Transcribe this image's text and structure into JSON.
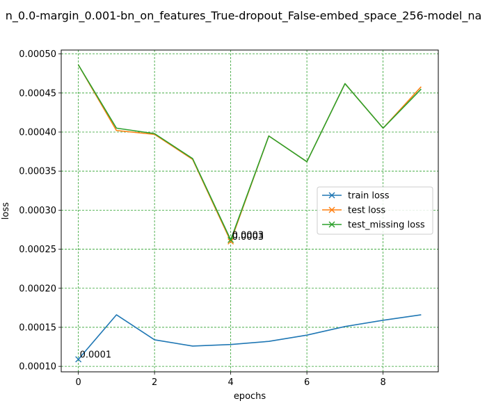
{
  "chart_data": {
    "type": "line",
    "title": "n_0.0-margin_0.001-bn_on_features_True-dropout_False-embed_space_256-model_na",
    "xlabel": "epochs",
    "ylabel": "loss",
    "xlim": [
      -0.45,
      9.45
    ],
    "ylim": [
      9.3e-05,
      0.000505
    ],
    "xticks": [
      0,
      2,
      4,
      6,
      8
    ],
    "xtick_labels": [
      "0",
      "2",
      "4",
      "6",
      "8"
    ],
    "yticks": [
      0.0001,
      0.00015,
      0.0002,
      0.00025,
      0.0003,
      0.00035,
      0.0004,
      0.00045,
      0.0005
    ],
    "ytick_labels": [
      "0.00010",
      "0.00015",
      "0.00020",
      "0.00025",
      "0.00030",
      "0.00035",
      "0.00040",
      "0.00045",
      "0.00050"
    ],
    "grid": true,
    "legend_position": "center-right",
    "x": [
      0,
      1,
      2,
      3,
      4,
      5,
      6,
      7,
      8,
      9
    ],
    "series": [
      {
        "name": "train loss",
        "color": "#1f77b4",
        "values": [
          0.000109,
          0.000166,
          0.000134,
          0.000126,
          0.000128,
          0.000132,
          0.00014,
          0.000151,
          0.000159,
          0.000166
        ],
        "min_marker": {
          "x": 0,
          "y": 0.000109,
          "label": "0.0001"
        }
      },
      {
        "name": "test loss",
        "color": "#ff7f0e",
        "values": [
          0.000486,
          0.000402,
          0.000397,
          0.000365,
          0.00026,
          0.000395,
          0.000362,
          0.000462,
          0.000405,
          0.000458
        ],
        "min_marker": {
          "x": 4,
          "y": 0.00026,
          "label": "0.0003"
        }
      },
      {
        "name": "test_missing loss",
        "color": "#2ca02c",
        "values": [
          0.000486,
          0.000405,
          0.000398,
          0.000366,
          0.000262,
          0.000395,
          0.000362,
          0.000462,
          0.000405,
          0.000455
        ],
        "min_marker": {
          "x": 4,
          "y": 0.000262,
          "label": "0.0003"
        }
      }
    ]
  }
}
